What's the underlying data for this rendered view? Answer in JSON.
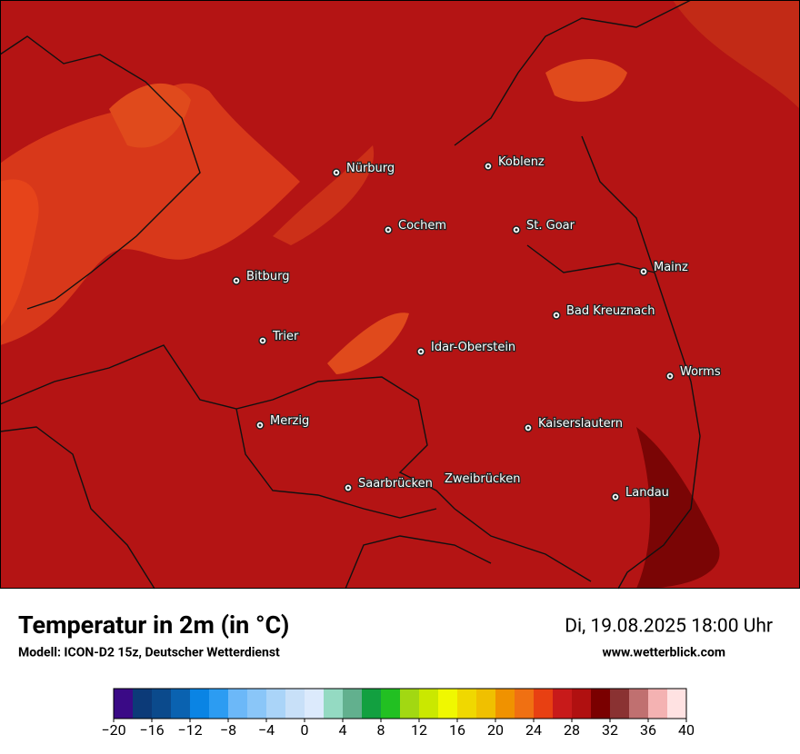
{
  "map": {
    "cities": [
      "Nürburg",
      "Koblenz",
      "Cochem",
      "St. Goar",
      "Mainz",
      "Bitburg",
      "Bad Kreuznach",
      "Trier",
      "Idar-Oberstein",
      "Worms",
      "Merzig",
      "Kaiserslautern",
      "Saarbrücken",
      "Zweibrücken",
      "Landau"
    ]
  },
  "footer": {
    "title": "Temperatur in 2m (in °C)",
    "subtitle": "Modell: ICON-D2 15z, Deutscher Wetterdienst",
    "datetime": "Di, 19.08.2025 18:00 Uhr",
    "website": "www.wetterblick.com"
  },
  "colorbar": {
    "lim": [
      -20,
      40
    ],
    "colors": [
      "#3a0a86",
      "#0c3a78",
      "#0b4a8c",
      "#0a62b0",
      "#0a84e4",
      "#2c9cf2",
      "#6cb8f8",
      "#8ac6f8",
      "#aad4f8",
      "#c8e0f8",
      "#dceafc",
      "#94dac2",
      "#62b08e",
      "#12a040",
      "#22c022",
      "#a2d812",
      "#cae800",
      "#f0f800",
      "#f0d800",
      "#f0c000",
      "#f09200",
      "#f07012",
      "#e84012",
      "#c81a1a",
      "#b01010",
      "#7a0000",
      "#8a3232",
      "#c07070",
      "#f4b2b2",
      "#ffe2e2"
    ],
    "ticks": [
      {
        "value": -20,
        "label": "−20"
      },
      {
        "value": -16,
        "label": "−16"
      },
      {
        "value": -12,
        "label": "−12"
      },
      {
        "value": -8,
        "label": "−8"
      },
      {
        "value": -4,
        "label": "−4"
      },
      0,
      4,
      8,
      12,
      16,
      20,
      24,
      28,
      32,
      36,
      40
    ]
  }
}
